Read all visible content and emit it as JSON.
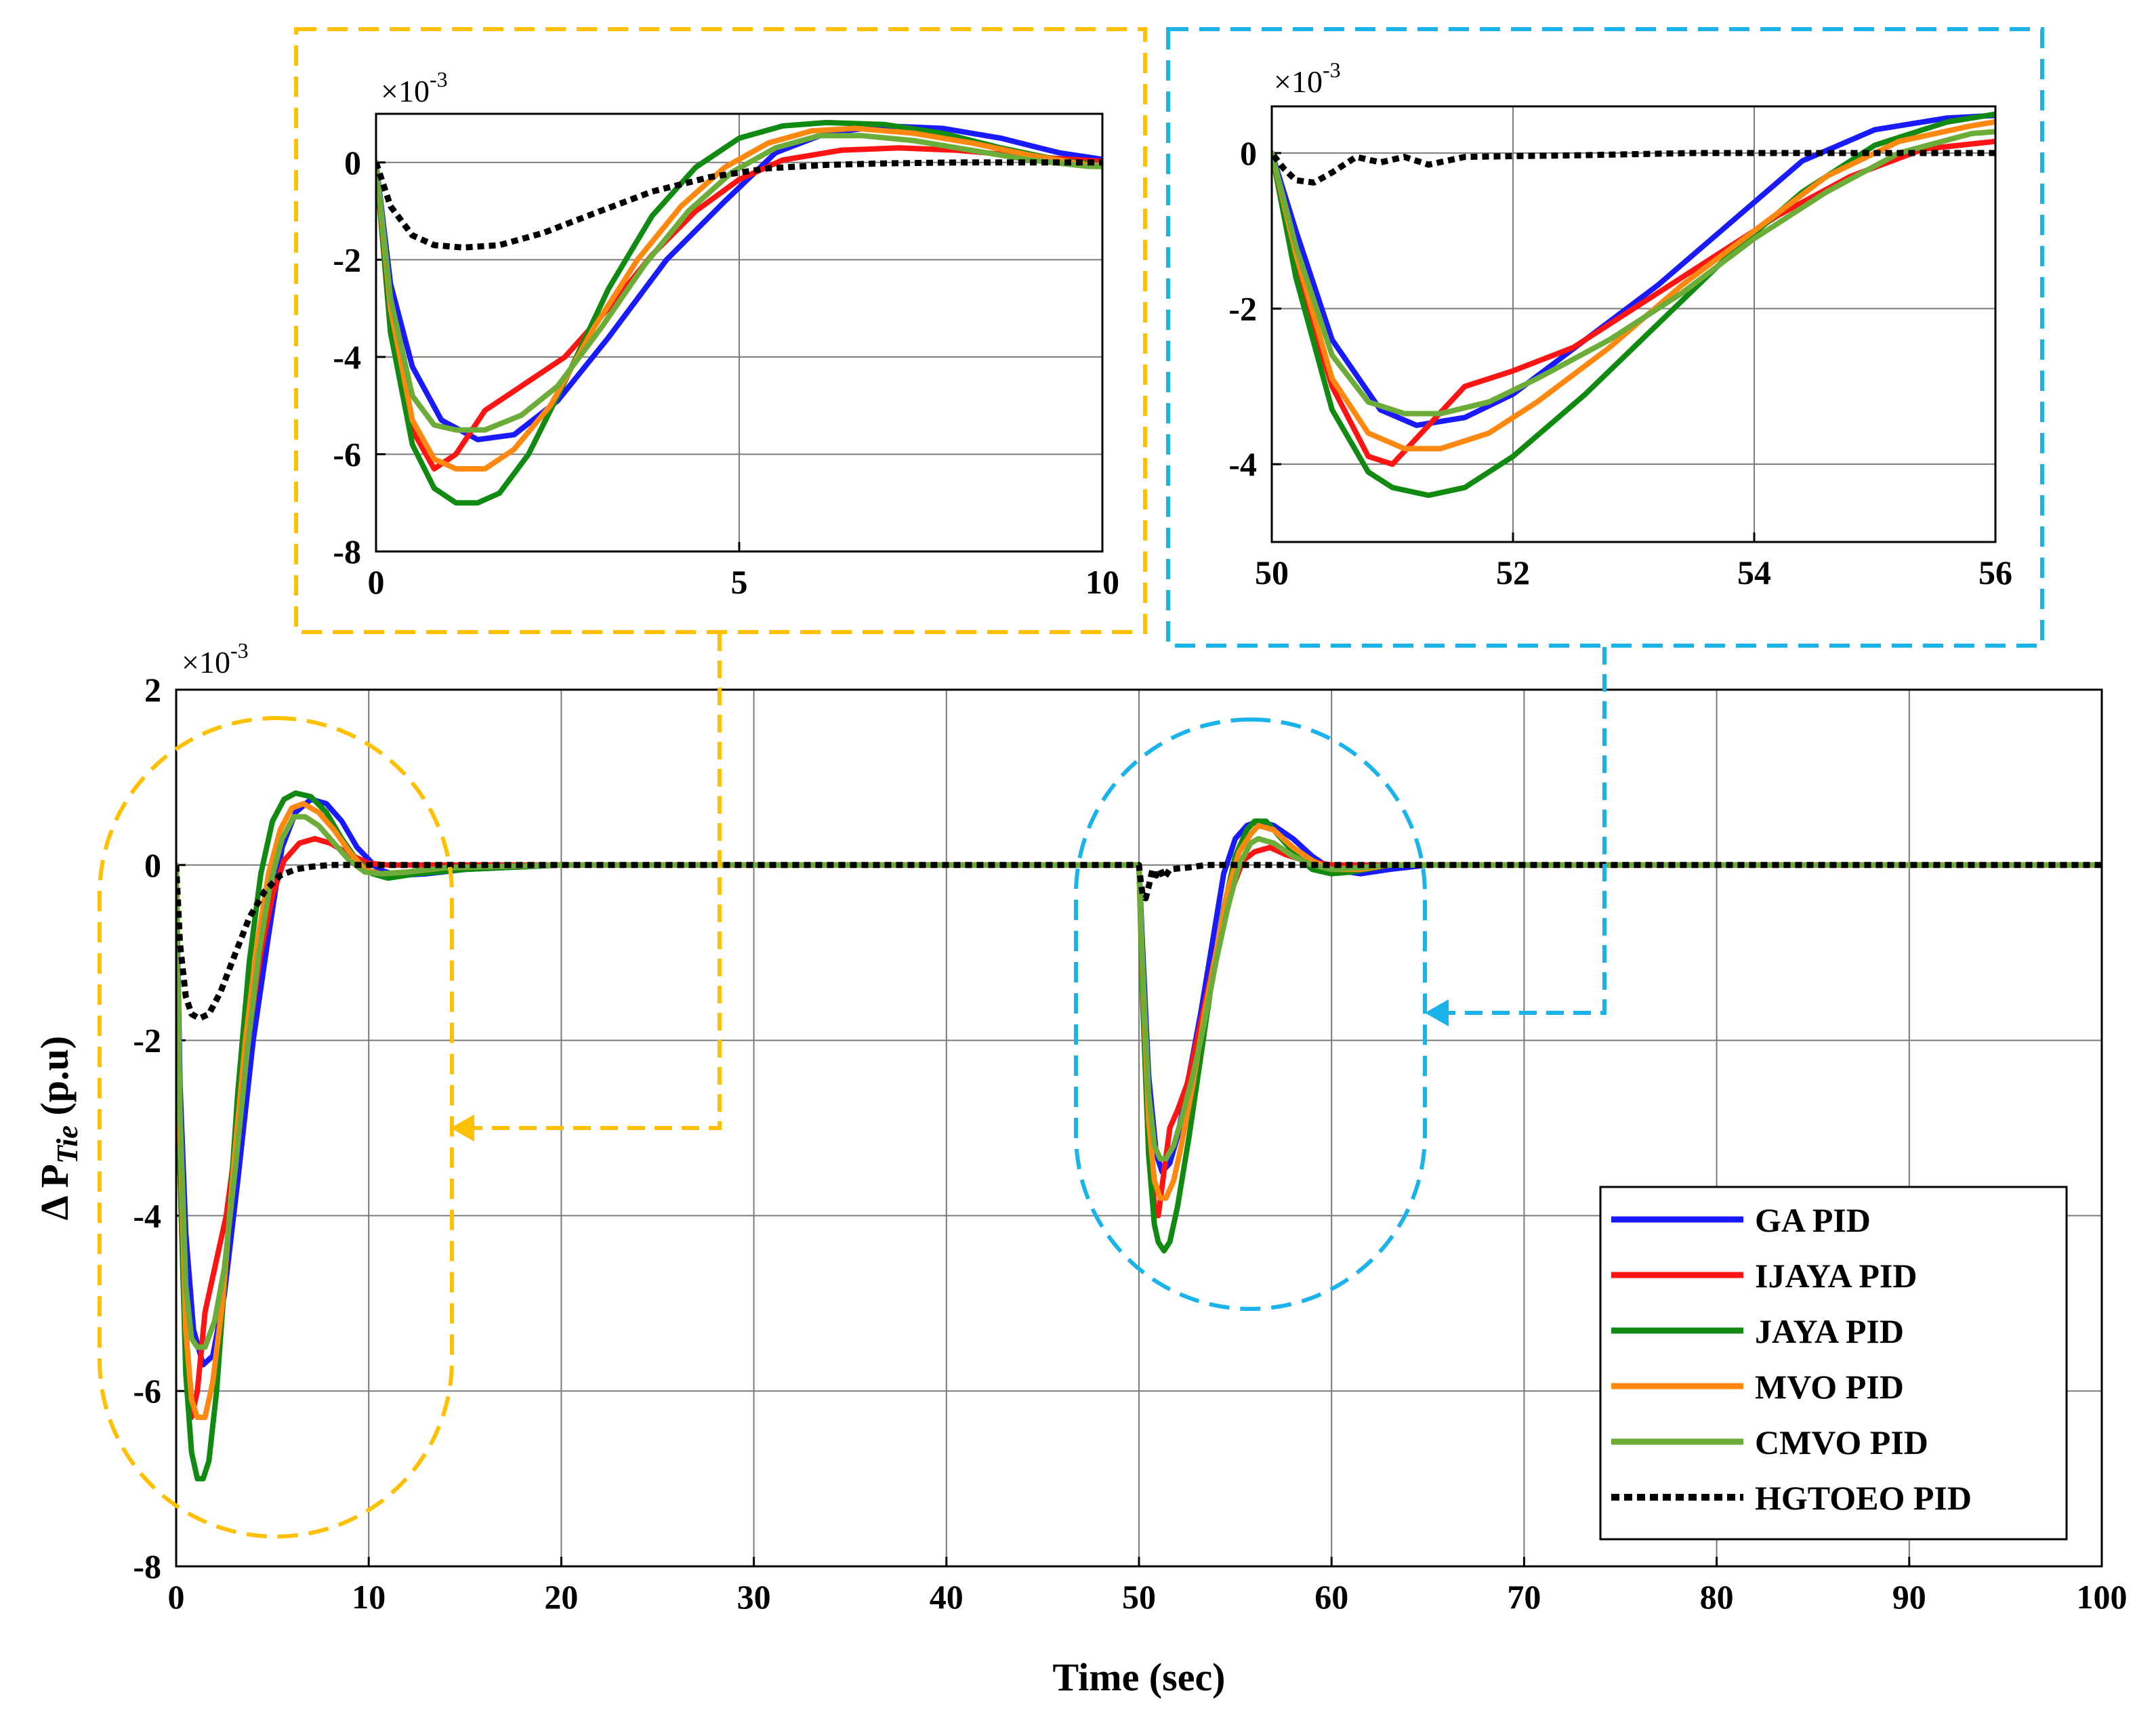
{
  "chart_data": [
    {
      "id": "main",
      "type": "line",
      "title": "",
      "xlabel": "Time (sec)",
      "ylabel_prefix": "Δ P",
      "ylabel_subscript": "Tie",
      "ylabel_suffix": " (p.u)",
      "multiplier_base": "×10",
      "multiplier_exp": "-3",
      "xlim": [
        0,
        100
      ],
      "ylim": [
        -8,
        2
      ],
      "xticks": [
        0,
        10,
        20,
        30,
        40,
        50,
        60,
        70,
        80,
        90,
        100
      ],
      "yticks": [
        -8,
        -6,
        -4,
        -2,
        0,
        2
      ],
      "grid": true,
      "legend_position": "bottom-right",
      "legend": [
        "GA PID",
        "IJAYA PID",
        "JAYA PID",
        "MVO PID",
        "CMVO PID",
        "HGTOEO PID"
      ],
      "series": [
        {
          "name": "GA PID",
          "color": "#1a1aff",
          "dash": "solid",
          "x": [
            0,
            0.2,
            0.5,
            0.9,
            1.4,
            1.9,
            2.5,
            3.2,
            4.0,
            4.8,
            5.5,
            6.2,
            7.0,
            7.8,
            8.6,
            9.4,
            10.5,
            11.5,
            13,
            15,
            20,
            50,
            50.2,
            50.5,
            50.9,
            51.2,
            51.6,
            52.0,
            52.6,
            53.2,
            53.8,
            54.4,
            55.0,
            55.6,
            56.2,
            57,
            58,
            59,
            60,
            61.5,
            63,
            65,
            100
          ],
          "y": [
            0,
            -2.5,
            -4.2,
            -5.3,
            -5.7,
            -5.6,
            -4.9,
            -3.6,
            -2.0,
            -0.8,
            0.2,
            0.6,
            0.75,
            0.7,
            0.5,
            0.2,
            -0.05,
            -0.12,
            -0.1,
            -0.05,
            0,
            0,
            -1.0,
            -2.4,
            -3.3,
            -3.5,
            -3.4,
            -3.1,
            -2.4,
            -1.7,
            -0.9,
            -0.1,
            0.3,
            0.45,
            0.5,
            0.45,
            0.3,
            0.1,
            -0.05,
            -0.1,
            -0.05,
            0,
            0
          ]
        },
        {
          "name": "IJAYA PID",
          "color": "#ff1414",
          "dash": "solid",
          "x": [
            0,
            0.2,
            0.5,
            0.8,
            1.1,
            1.5,
            2.0,
            2.6,
            3.2,
            3.8,
            4.4,
            5.0,
            5.6,
            6.4,
            7.2,
            8.0,
            9.0,
            10,
            11,
            13,
            20,
            50,
            50.2,
            50.5,
            50.8,
            51.0,
            51.3,
            51.6,
            52.0,
            52.5,
            53.0,
            53.6,
            54.2,
            54.8,
            55.4,
            56.0,
            56.8,
            57.6,
            58.6,
            60,
            62,
            100
          ],
          "y": [
            0,
            -3.5,
            -5.5,
            -6.3,
            -6.0,
            -5.1,
            -4.6,
            -4.0,
            -3.0,
            -1.9,
            -1.0,
            -0.35,
            0.05,
            0.25,
            0.3,
            0.25,
            0.12,
            0.02,
            0,
            0,
            0,
            0,
            -1.5,
            -3.0,
            -3.9,
            -4.0,
            -3.5,
            -3.0,
            -2.8,
            -2.5,
            -2.0,
            -1.4,
            -0.8,
            -0.3,
            0.05,
            0.15,
            0.2,
            0.12,
            0.05,
            0,
            0,
            0
          ]
        },
        {
          "name": "JAYA PID",
          "color": "#108a10",
          "dash": "solid",
          "x": [
            0,
            0.2,
            0.5,
            0.8,
            1.1,
            1.4,
            1.7,
            2.1,
            2.6,
            3.2,
            3.8,
            4.4,
            5.0,
            5.6,
            6.2,
            7.0,
            7.8,
            8.6,
            9.4,
            10.2,
            11,
            12.5,
            15,
            20,
            50,
            50.2,
            50.5,
            50.8,
            51.0,
            51.3,
            51.6,
            52.0,
            52.6,
            53.2,
            53.8,
            54.4,
            55.0,
            55.6,
            56.0,
            56.6,
            57.4,
            58.2,
            59.0,
            60,
            61,
            63,
            100
          ],
          "y": [
            0,
            -3.5,
            -5.8,
            -6.7,
            -7.0,
            -7.0,
            -6.8,
            -6.0,
            -4.5,
            -2.6,
            -1.1,
            -0.1,
            0.5,
            0.75,
            0.82,
            0.78,
            0.6,
            0.3,
            0.05,
            -0.1,
            -0.15,
            -0.1,
            -0.05,
            0,
            0,
            -1.6,
            -3.3,
            -4.1,
            -4.3,
            -4.4,
            -4.3,
            -3.9,
            -3.1,
            -2.2,
            -1.3,
            -0.5,
            0.1,
            0.4,
            0.5,
            0.5,
            0.3,
            0.1,
            -0.05,
            -0.1,
            -0.08,
            0,
            0
          ]
        },
        {
          "name": "MVO PID",
          "color": "#ff8810",
          "dash": "solid",
          "x": [
            0,
            0.2,
            0.5,
            0.8,
            1.1,
            1.5,
            1.9,
            2.4,
            3.0,
            3.6,
            4.2,
            4.8,
            5.4,
            6.0,
            6.6,
            7.4,
            8.2,
            9.0,
            9.8,
            10.6,
            12,
            14,
            20,
            50,
            50.2,
            50.5,
            50.8,
            51.1,
            51.4,
            51.8,
            52.2,
            52.8,
            53.4,
            54.0,
            54.6,
            55.2,
            55.8,
            56.2,
            57,
            58,
            59,
            60,
            61.5,
            63,
            100
          ],
          "y": [
            0,
            -3.0,
            -5.3,
            -6.1,
            -6.3,
            -6.3,
            -5.9,
            -5.0,
            -3.4,
            -2.0,
            -0.9,
            -0.1,
            0.4,
            0.65,
            0.7,
            0.6,
            0.4,
            0.15,
            -0.05,
            -0.1,
            -0.08,
            -0.03,
            0,
            0,
            -1.3,
            -2.9,
            -3.6,
            -3.8,
            -3.8,
            -3.6,
            -3.2,
            -2.5,
            -1.7,
            -1.0,
            -0.3,
            0.15,
            0.35,
            0.45,
            0.4,
            0.2,
            0.05,
            -0.05,
            -0.05,
            0,
            0
          ]
        },
        {
          "name": "CMVO PID",
          "color": "#6cac38",
          "dash": "solid",
          "x": [
            0,
            0.2,
            0.5,
            0.8,
            1.1,
            1.5,
            2.0,
            2.5,
            3.1,
            3.7,
            4.3,
            4.9,
            5.5,
            6.1,
            6.7,
            7.4,
            8.2,
            9.0,
            9.8,
            10.6,
            12,
            14,
            20,
            50,
            50.2,
            50.5,
            50.8,
            51.1,
            51.4,
            51.8,
            52.2,
            52.8,
            53.4,
            54.0,
            54.6,
            55.2,
            55.8,
            56.2,
            57,
            58,
            59,
            60,
            61.5,
            63,
            100
          ],
          "y": [
            0,
            -2.8,
            -4.8,
            -5.4,
            -5.5,
            -5.5,
            -5.2,
            -4.6,
            -3.4,
            -2.1,
            -1.0,
            -0.2,
            0.3,
            0.55,
            0.55,
            0.45,
            0.25,
            0.05,
            -0.08,
            -0.1,
            -0.08,
            -0.03,
            0,
            0,
            -1.2,
            -2.6,
            -3.2,
            -3.35,
            -3.35,
            -3.2,
            -2.9,
            -2.4,
            -1.8,
            -1.1,
            -0.5,
            0.0,
            0.25,
            0.3,
            0.25,
            0.1,
            0.0,
            -0.05,
            -0.03,
            0,
            0
          ]
        },
        {
          "name": "HGTOEO PID",
          "color": "#000000",
          "dash": "dotted",
          "x": [
            0,
            0.2,
            0.5,
            0.8,
            1.2,
            1.7,
            2.3,
            3.0,
            3.8,
            4.6,
            5.4,
            6.2,
            7.0,
            8.0,
            10,
            20,
            50,
            50.1,
            50.2,
            50.35,
            50.5,
            50.7,
            50.9,
            51.1,
            51.3,
            51.6,
            52.0,
            52.5,
            53.5,
            56,
            100
          ],
          "y": [
            0,
            -0.9,
            -1.5,
            -1.7,
            -1.75,
            -1.7,
            -1.45,
            -1.05,
            -0.6,
            -0.3,
            -0.12,
            -0.05,
            -0.02,
            0,
            0,
            0,
            0,
            -0.2,
            -0.35,
            -0.38,
            -0.25,
            -0.05,
            -0.12,
            -0.05,
            -0.15,
            -0.05,
            -0.04,
            -0.03,
            0,
            0,
            0
          ]
        }
      ]
    },
    {
      "id": "zoom1",
      "type": "line",
      "title": "",
      "multiplier_base": "×10",
      "multiplier_exp": "-3",
      "xlim": [
        0,
        10
      ],
      "ylim": [
        -8,
        1
      ],
      "xticks": [
        0,
        5,
        10
      ],
      "yticks": [
        -8,
        -6,
        -4,
        -2,
        0
      ],
      "grid": true,
      "series_source": "main"
    },
    {
      "id": "zoom2",
      "type": "line",
      "title": "",
      "multiplier_base": "×10",
      "multiplier_exp": "-3",
      "xlim": [
        50,
        56
      ],
      "ylim": [
        -5,
        0.6
      ],
      "xticks": [
        50,
        52,
        54,
        56
      ],
      "yticks": [
        -4,
        -2,
        0
      ],
      "grid": true,
      "series_source": "main"
    }
  ],
  "colors": {
    "orange_highlight": "#ffc000",
    "blue_highlight": "#1ab4ea",
    "grid": "#7a7a7a"
  }
}
